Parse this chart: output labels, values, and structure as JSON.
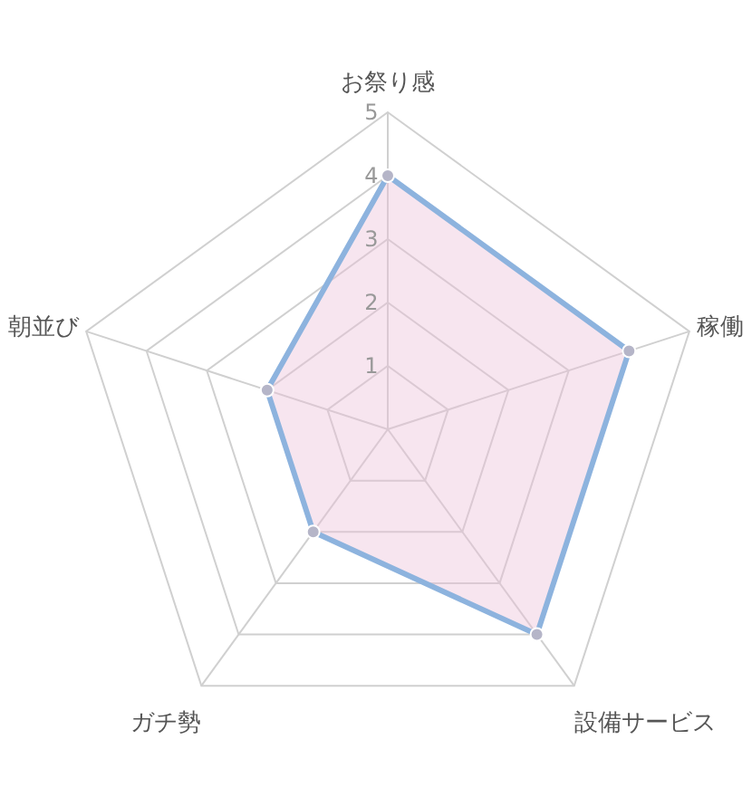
{
  "chart_data": {
    "type": "radar",
    "categories": [
      "お祭り感",
      "稼働",
      "設備サービス",
      "ガチ勢",
      "朝並び"
    ],
    "series": [
      {
        "color": "#8db3de",
        "values": [
          4,
          4,
          4,
          2,
          2
        ]
      }
    ],
    "ylim": [
      0,
      5
    ],
    "yticks": [
      1,
      2,
      3,
      4,
      5
    ],
    "grid": true,
    "marker": "circle"
  }
}
